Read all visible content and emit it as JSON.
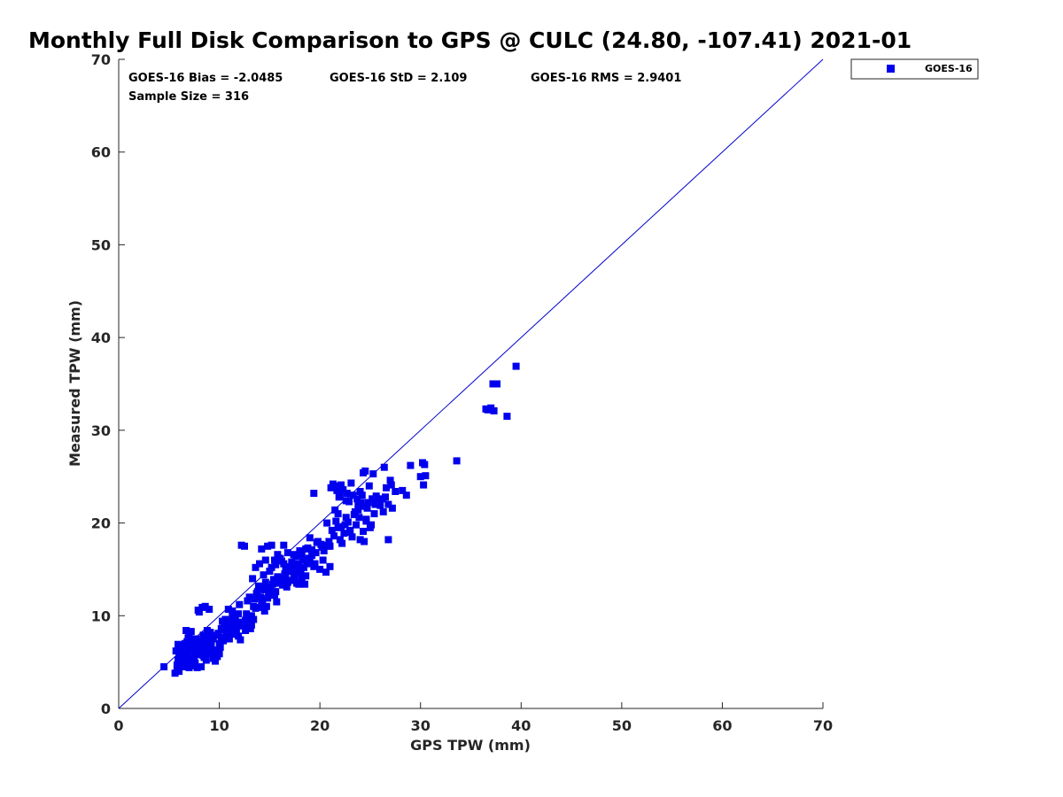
{
  "chart_data": {
    "type": "scatter",
    "title": "Monthly Full Disk Comparison to GPS @ CULC (24.80, -107.41) 2021-01",
    "xlabel": "GPS TPW (mm)",
    "ylabel": "Measured TPW (mm)",
    "xlim": [
      0,
      70
    ],
    "ylim": [
      0,
      70
    ],
    "xticks": [
      "0",
      "10",
      "20",
      "30",
      "40",
      "50",
      "60",
      "70"
    ],
    "yticks": [
      "0",
      "10",
      "20",
      "30",
      "40",
      "50",
      "60",
      "70"
    ],
    "grid": false,
    "legend_position": "outside-top-right",
    "reference_line": [
      [
        0,
        0
      ],
      [
        70,
        70
      ]
    ],
    "stats": {
      "bias": "GOES-16 Bias = -2.0485",
      "std": "GOES-16 StD = 2.109",
      "rms": "GOES-16 RMS = 2.9401",
      "sample": "Sample Size = 316"
    },
    "colors": {
      "marker": "#0000ee",
      "line": "#0000cc"
    },
    "series": [
      {
        "name": "GOES-16",
        "points": [
          [
            4.5,
            4.5
          ],
          [
            5.6,
            3.8
          ],
          [
            5.8,
            4.2
          ],
          [
            6.0,
            4.0
          ],
          [
            6.3,
            4.5
          ],
          [
            6.6,
            4.6
          ],
          [
            7.0,
            4.4
          ],
          [
            7.4,
            4.6
          ],
          [
            7.8,
            4.4
          ],
          [
            8.2,
            4.5
          ],
          [
            5.7,
            6.2
          ],
          [
            5.9,
            6.6
          ],
          [
            6.1,
            5.6
          ],
          [
            6.4,
            6.0
          ],
          [
            6.6,
            6.4
          ],
          [
            6.8,
            7.2
          ],
          [
            7.0,
            7.8
          ],
          [
            6.7,
            8.4
          ],
          [
            7.2,
            8.3
          ],
          [
            7.5,
            5.3
          ],
          [
            7.6,
            6.0
          ],
          [
            7.9,
            6.6
          ],
          [
            8.1,
            7.0
          ],
          [
            8.3,
            6.0
          ],
          [
            8.5,
            5.5
          ],
          [
            8.7,
            6.3
          ],
          [
            8.9,
            5.9
          ],
          [
            9.0,
            7.2
          ],
          [
            9.2,
            6.8
          ],
          [
            9.4,
            5.4
          ],
          [
            9.6,
            5.1
          ],
          [
            9.8,
            5.6
          ],
          [
            10.0,
            5.9
          ],
          [
            7.3,
            5.1
          ],
          [
            6.9,
            5.7
          ],
          [
            6.2,
            6.8
          ],
          [
            7.7,
            7.5
          ],
          [
            8.4,
            7.9
          ],
          [
            9.1,
            8.2
          ],
          [
            9.9,
            8.1
          ],
          [
            10.2,
            7.7
          ],
          [
            10.5,
            8.5
          ],
          [
            10.8,
            9.1
          ],
          [
            11.2,
            8.6
          ],
          [
            11.4,
            9.3
          ],
          [
            11.7,
            8.2
          ],
          [
            11.9,
            7.8
          ],
          [
            12.1,
            7.4
          ],
          [
            12.4,
            8.9
          ],
          [
            12.6,
            9.5
          ],
          [
            12.8,
            8.7
          ],
          [
            13.1,
            8.6
          ],
          [
            8.0,
            10.4
          ],
          [
            8.3,
            10.9
          ],
          [
            8.6,
            11.0
          ],
          [
            9.0,
            10.7
          ],
          [
            7.9,
            10.6
          ],
          [
            10.9,
            10.7
          ],
          [
            11.3,
            10.5
          ],
          [
            11.6,
            10.0
          ],
          [
            12.0,
            11.2
          ],
          [
            10.6,
            9.6
          ],
          [
            10.3,
            9.4
          ],
          [
            11.0,
            7.5
          ],
          [
            9.5,
            6.3
          ],
          [
            8.8,
            8.4
          ],
          [
            7.1,
            6.9
          ],
          [
            6.5,
            5.9
          ],
          [
            5.9,
            5.2
          ],
          [
            6.2,
            4.8
          ],
          [
            13.2,
            10.0
          ],
          [
            13.4,
            11.0
          ],
          [
            13.5,
            11.8
          ],
          [
            13.7,
            12.4
          ],
          [
            13.9,
            13.2
          ],
          [
            14.1,
            12.0
          ],
          [
            14.3,
            11.6
          ],
          [
            14.5,
            10.5
          ],
          [
            14.7,
            11.0
          ],
          [
            14.9,
            12.6
          ],
          [
            15.1,
            12.9
          ],
          [
            15.3,
            13.4
          ],
          [
            15.5,
            12.2
          ],
          [
            15.7,
            11.5
          ],
          [
            15.9,
            13.6
          ],
          [
            16.1,
            14.0
          ],
          [
            16.3,
            13.3
          ],
          [
            16.5,
            14.5
          ],
          [
            16.7,
            13.1
          ],
          [
            16.9,
            14.8
          ],
          [
            17.1,
            13.8
          ],
          [
            17.3,
            15.0
          ],
          [
            17.5,
            14.2
          ],
          [
            17.7,
            13.5
          ],
          [
            17.9,
            15.4
          ],
          [
            18.1,
            14.6
          ],
          [
            18.3,
            16.0
          ],
          [
            18.5,
            13.4
          ],
          [
            18.7,
            15.6
          ],
          [
            18.9,
            16.2
          ],
          [
            13.3,
            14.0
          ],
          [
            13.6,
            15.2
          ],
          [
            14.0,
            15.6
          ],
          [
            14.4,
            14.4
          ],
          [
            14.6,
            16.0
          ],
          [
            14.8,
            17.5
          ],
          [
            15.2,
            17.6
          ],
          [
            15.6,
            15.5
          ],
          [
            16.0,
            16.2
          ],
          [
            16.4,
            17.6
          ],
          [
            16.8,
            16.8
          ],
          [
            17.2,
            15.8
          ],
          [
            17.6,
            16.4
          ],
          [
            18.0,
            17.0
          ],
          [
            18.4,
            15.2
          ],
          [
            12.2,
            17.6
          ],
          [
            12.5,
            17.5
          ],
          [
            14.2,
            17.2
          ],
          [
            15.0,
            14.8
          ],
          [
            15.4,
            13.9
          ],
          [
            19.2,
            16.5
          ],
          [
            19.5,
            15.6
          ],
          [
            19.7,
            17.9
          ],
          [
            20.0,
            15.0
          ],
          [
            20.2,
            17.4
          ],
          [
            20.5,
            17.6
          ],
          [
            20.8,
            17.5
          ],
          [
            21.0,
            15.3
          ],
          [
            21.2,
            19.2
          ],
          [
            21.4,
            18.6
          ],
          [
            21.6,
            20.2
          ],
          [
            21.8,
            19.5
          ],
          [
            22.0,
            18.2
          ],
          [
            22.2,
            17.8
          ],
          [
            22.4,
            18.9
          ],
          [
            22.6,
            20.6
          ],
          [
            22.8,
            20.1
          ],
          [
            23.0,
            19.0
          ],
          [
            23.2,
            18.5
          ],
          [
            23.4,
            20.9
          ],
          [
            23.6,
            19.8
          ],
          [
            23.8,
            21.4
          ],
          [
            24.0,
            18.2
          ],
          [
            24.2,
            21.8
          ],
          [
            24.4,
            18.0
          ],
          [
            24.6,
            20.4
          ],
          [
            24.8,
            22.2
          ],
          [
            25.0,
            19.5
          ],
          [
            25.2,
            22.6
          ],
          [
            25.4,
            21.0
          ],
          [
            19.8,
            18.0
          ],
          [
            19.4,
            23.2
          ],
          [
            21.1,
            23.8
          ],
          [
            21.3,
            24.2
          ],
          [
            21.7,
            23.5
          ],
          [
            21.9,
            22.8
          ],
          [
            22.1,
            24.1
          ],
          [
            22.3,
            23.6
          ],
          [
            22.7,
            23.2
          ],
          [
            23.1,
            24.3
          ],
          [
            23.3,
            23.0
          ],
          [
            23.7,
            22.6
          ],
          [
            24.1,
            22.2
          ],
          [
            24.3,
            25.4
          ],
          [
            24.5,
            25.6
          ],
          [
            24.9,
            24.0
          ],
          [
            25.3,
            25.3
          ],
          [
            25.6,
            22.9
          ],
          [
            25.8,
            22.5
          ],
          [
            26.0,
            21.9
          ],
          [
            26.2,
            22.6
          ],
          [
            26.4,
            26.0
          ],
          [
            26.6,
            23.8
          ],
          [
            26.8,
            22.0
          ],
          [
            27.0,
            24.6
          ],
          [
            27.2,
            21.6
          ],
          [
            27.5,
            23.4
          ],
          [
            28.2,
            23.5
          ],
          [
            28.6,
            23.0
          ],
          [
            29.0,
            26.2
          ],
          [
            26.8,
            18.2
          ],
          [
            30.0,
            25.0
          ],
          [
            30.2,
            26.5
          ],
          [
            30.3,
            24.1
          ],
          [
            30.4,
            26.3
          ],
          [
            30.5,
            25.1
          ],
          [
            33.6,
            26.7
          ],
          [
            36.5,
            32.3
          ],
          [
            36.7,
            32.2
          ],
          [
            37.0,
            32.4
          ],
          [
            37.3,
            32.1
          ],
          [
            37.2,
            35.0
          ],
          [
            37.6,
            35.0
          ],
          [
            38.6,
            31.5
          ],
          [
            39.5,
            36.9
          ],
          [
            21.5,
            21.4
          ],
          [
            20.7,
            20.0
          ],
          [
            19.0,
            18.4
          ],
          [
            18.6,
            17.2
          ],
          [
            17.4,
            16.6
          ],
          [
            16.6,
            15.2
          ],
          [
            15.8,
            16.6
          ],
          [
            14.4,
            13.0
          ],
          [
            13.8,
            12.6
          ],
          [
            13.0,
            12.0
          ],
          [
            12.7,
            10.2
          ],
          [
            12.3,
            9.0
          ],
          [
            11.8,
            8.9
          ],
          [
            11.5,
            9.0
          ],
          [
            11.1,
            8.4
          ],
          [
            10.7,
            8.0
          ],
          [
            10.4,
            7.3
          ],
          [
            10.1,
            6.6
          ],
          [
            9.7,
            6.1
          ],
          [
            9.3,
            7.5
          ],
          [
            8.9,
            7.7
          ],
          [
            8.5,
            7.3
          ],
          [
            8.2,
            6.6
          ],
          [
            7.8,
            5.8
          ],
          [
            7.4,
            7.1
          ],
          [
            7.0,
            6.2
          ],
          [
            6.6,
            7.0
          ],
          [
            6.3,
            6.5
          ],
          [
            6.0,
            5.5
          ],
          [
            5.8,
            4.7
          ],
          [
            15.5,
            16.0
          ],
          [
            16.2,
            15.9
          ],
          [
            17.0,
            15.3
          ],
          [
            17.8,
            14.9
          ],
          [
            18.2,
            13.9
          ],
          [
            19.0,
            15.8
          ],
          [
            20.4,
            17.0
          ],
          [
            22.5,
            19.8
          ],
          [
            23.5,
            21.2
          ],
          [
            24.7,
            21.6
          ],
          [
            25.5,
            22.0
          ],
          [
            22.9,
            22.3
          ],
          [
            24.0,
            23.4
          ],
          [
            21.0,
            17.5
          ],
          [
            18.8,
            17.3
          ],
          [
            16.0,
            13.5
          ],
          [
            15.0,
            13.0
          ],
          [
            14.2,
            11.4
          ],
          [
            13.4,
            9.6
          ],
          [
            13.0,
            8.8
          ],
          [
            12.9,
            9.4
          ],
          [
            11.9,
            10.2
          ],
          [
            11.3,
            9.8
          ],
          [
            10.9,
            9.0
          ],
          [
            10.5,
            8.8
          ],
          [
            10.2,
            8.6
          ],
          [
            9.8,
            7.9
          ],
          [
            9.4,
            7.7
          ],
          [
            9.0,
            6.2
          ],
          [
            8.7,
            5.2
          ],
          [
            8.4,
            5.7
          ],
          [
            8.1,
            6.3
          ],
          [
            7.8,
            6.9
          ],
          [
            7.5,
            6.6
          ],
          [
            7.2,
            7.4
          ],
          [
            6.9,
            7.6
          ],
          [
            6.6,
            6.8
          ],
          [
            6.4,
            5.4
          ],
          [
            6.1,
            6.1
          ],
          [
            5.9,
            6.9
          ],
          [
            14.6,
            13.6
          ],
          [
            15.2,
            15.2
          ],
          [
            16.4,
            15.6
          ],
          [
            17.6,
            15.6
          ],
          [
            18.2,
            16.6
          ],
          [
            19.6,
            16.8
          ],
          [
            20.3,
            16.0
          ],
          [
            21.8,
            21.0
          ],
          [
            22.6,
            22.4
          ],
          [
            23.9,
            20.6
          ],
          [
            24.6,
            20.2
          ],
          [
            25.9,
            22.3
          ],
          [
            26.5,
            22.8
          ],
          [
            27.1,
            24.1
          ],
          [
            24.2,
            23.0
          ],
          [
            21.5,
            24.0
          ],
          [
            22.0,
            22.9
          ],
          [
            12.8,
            11.6
          ],
          [
            13.6,
            10.8
          ],
          [
            14.0,
            10.9
          ],
          [
            14.8,
            11.9
          ],
          [
            15.6,
            12.6
          ],
          [
            16.8,
            13.6
          ],
          [
            17.4,
            14.4
          ],
          [
            18.6,
            14.3
          ],
          [
            19.4,
            15.3
          ],
          [
            20.6,
            14.7
          ],
          [
            10.0,
            7.0
          ],
          [
            9.2,
            6.0
          ],
          [
            8.6,
            6.9
          ],
          [
            8.0,
            7.2
          ],
          [
            7.6,
            4.9
          ],
          [
            7.1,
            5.2
          ],
          [
            6.8,
            5.0
          ],
          [
            11.4,
            8.0
          ],
          [
            12.0,
            9.3
          ],
          [
            12.6,
            8.4
          ],
          [
            13.2,
            9.0
          ],
          [
            14.5,
            12.8
          ],
          [
            15.8,
            14.2
          ],
          [
            16.6,
            14.1
          ],
          [
            17.9,
            13.4
          ],
          [
            19.2,
            17.1
          ],
          [
            20.1,
            17.7
          ],
          [
            20.9,
            18.0
          ],
          [
            22.1,
            19.6
          ],
          [
            23.0,
            19.2
          ],
          [
            24.3,
            19.1
          ],
          [
            25.1,
            19.8
          ],
          [
            26.3,
            21.2
          ],
          [
            23.8,
            22.0
          ]
        ]
      }
    ]
  }
}
